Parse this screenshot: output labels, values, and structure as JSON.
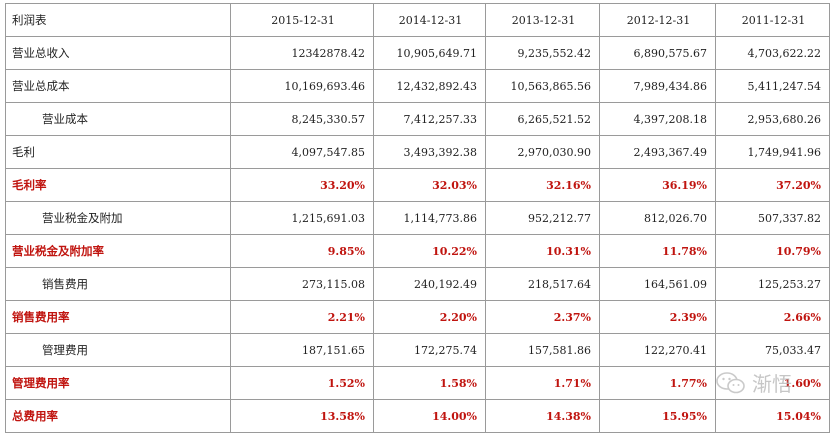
{
  "table": {
    "header": [
      "利润表",
      "2015-12-31",
      "2014-12-31",
      "2013-12-31",
      "2012-12-31",
      "2011-12-31"
    ],
    "rows": [
      {
        "label": "营业总收入",
        "values": [
          "12342878.42",
          "10,905,649.71",
          "9,235,552.42",
          "6,890,575.67",
          "4,703,622.22"
        ],
        "indent": false,
        "highlight": false
      },
      {
        "label": "营业总成本",
        "values": [
          "10,169,693.46",
          "12,432,892.43",
          "10,563,865.56",
          "7,989,434.86",
          "5,411,247.54"
        ],
        "indent": false,
        "highlight": false
      },
      {
        "label": "营业成本",
        "values": [
          "8,245,330.57",
          "7,412,257.33",
          "6,265,521.52",
          "4,397,208.18",
          "2,953,680.26"
        ],
        "indent": true,
        "highlight": false
      },
      {
        "label": "毛利",
        "values": [
          "4,097,547.85",
          "3,493,392.38",
          "2,970,030.90",
          "2,493,367.49",
          "1,749,941.96"
        ],
        "indent": false,
        "highlight": false
      },
      {
        "label": "毛利率",
        "values": [
          "33.20%",
          "32.03%",
          "32.16%",
          "36.19%",
          "37.20%"
        ],
        "indent": false,
        "highlight": true
      },
      {
        "label": "营业税金及附加",
        "values": [
          "1,215,691.03",
          "1,114,773.86",
          "952,212.77",
          "812,026.70",
          "507,337.82"
        ],
        "indent": true,
        "highlight": false
      },
      {
        "label": "营业税金及附加率",
        "values": [
          "9.85%",
          "10.22%",
          "10.31%",
          "11.78%",
          "10.79%"
        ],
        "indent": false,
        "highlight": true
      },
      {
        "label": "销售费用",
        "values": [
          "273,115.08",
          "240,192.49",
          "218,517.64",
          "164,561.09",
          "125,253.27"
        ],
        "indent": true,
        "highlight": false
      },
      {
        "label": "销售费用率",
        "values": [
          "2.21%",
          "2.20%",
          "2.37%",
          "2.39%",
          "2.66%"
        ],
        "indent": false,
        "highlight": true
      },
      {
        "label": "管理费用",
        "values": [
          "187,151.65",
          "172,275.74",
          "157,581.86",
          "122,270.41",
          "75,033.47"
        ],
        "indent": true,
        "highlight": false
      },
      {
        "label": "管理费用率",
        "values": [
          "1.52%",
          "1.58%",
          "1.71%",
          "1.77%",
          "1.60%"
        ],
        "indent": false,
        "highlight": true
      },
      {
        "label": "总费用率",
        "values": [
          "13.58%",
          "14.00%",
          "14.38%",
          "15.95%",
          "15.04%"
        ],
        "indent": false,
        "highlight": true
      }
    ]
  },
  "watermark": {
    "text": "渐悟",
    "logo_icon": "wechat-logo-icon",
    "color": "#b9b9b9"
  },
  "colors": {
    "highlight": "#c0140f",
    "border": "#9a9a9a"
  }
}
